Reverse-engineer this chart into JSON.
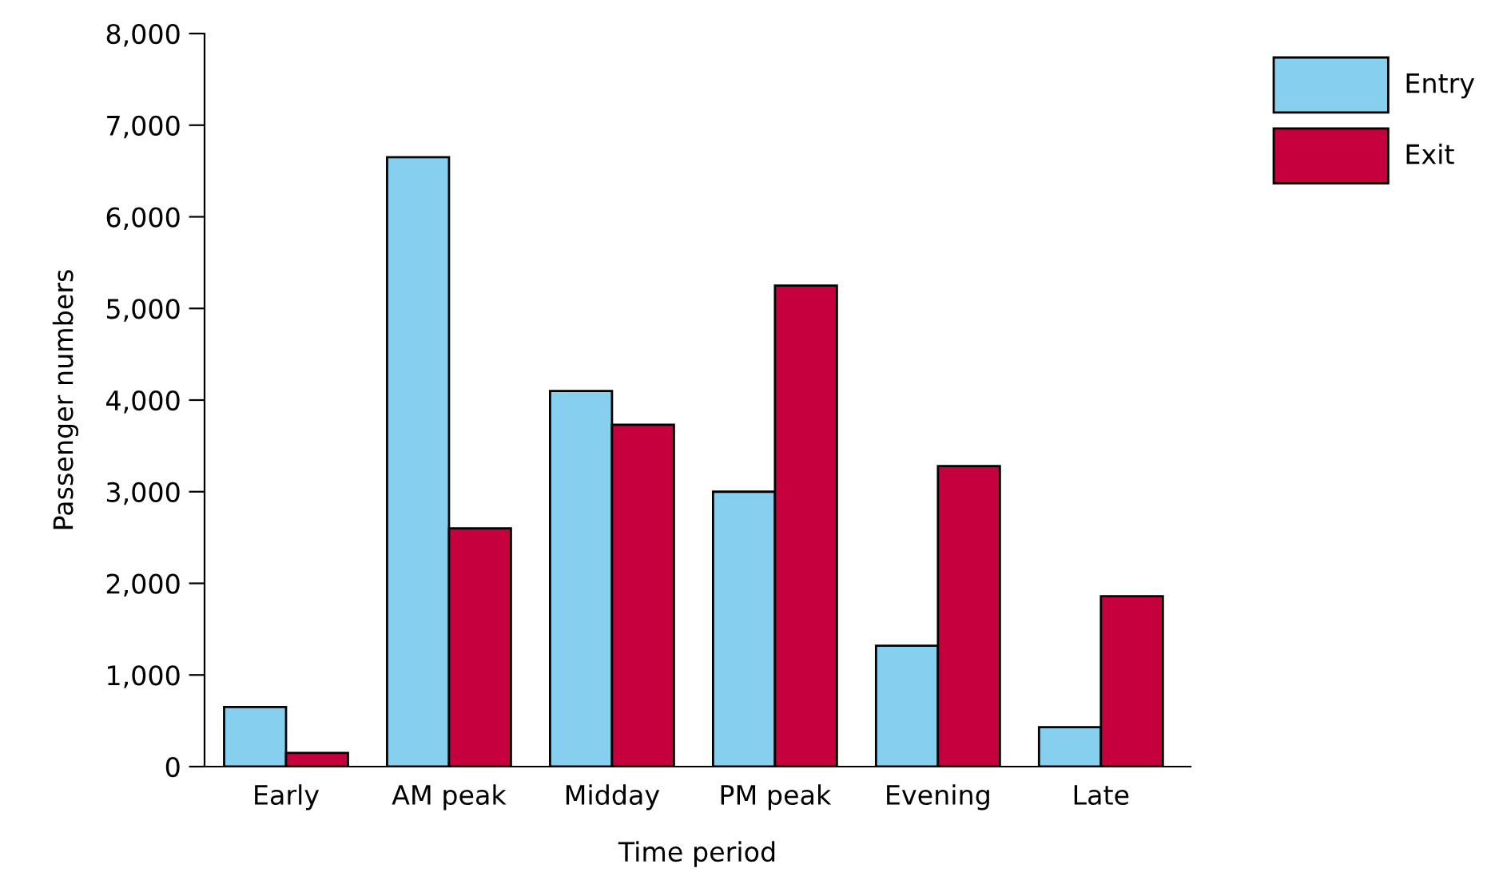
{
  "chart_data": {
    "type": "bar",
    "xlabel": "Time period",
    "ylabel": "Passenger numbers",
    "categories": [
      "Early",
      "AM peak",
      "Midday",
      "PM peak",
      "Evening",
      "Late"
    ],
    "series": [
      {
        "name": "Entry",
        "color": "#87cfee",
        "values": [
          650,
          6650,
          4100,
          3000,
          1320,
          430
        ]
      },
      {
        "name": "Exit",
        "color": "#c6003f",
        "values": [
          150,
          2600,
          3730,
          5250,
          3280,
          1860
        ]
      }
    ],
    "ylim": [
      0,
      8000
    ],
    "yticks": [
      {
        "value": 0,
        "label": "0"
      },
      {
        "value": 1000,
        "label": "1,000"
      },
      {
        "value": 2000,
        "label": "2,000"
      },
      {
        "value": 3000,
        "label": "3,000"
      },
      {
        "value": 4000,
        "label": "4,000"
      },
      {
        "value": 5000,
        "label": "5,000"
      },
      {
        "value": 6000,
        "label": "6,000"
      },
      {
        "value": 7000,
        "label": "7,000"
      },
      {
        "value": 8000,
        "label": "8,000"
      }
    ],
    "grid": false,
    "legend": "top right"
  }
}
